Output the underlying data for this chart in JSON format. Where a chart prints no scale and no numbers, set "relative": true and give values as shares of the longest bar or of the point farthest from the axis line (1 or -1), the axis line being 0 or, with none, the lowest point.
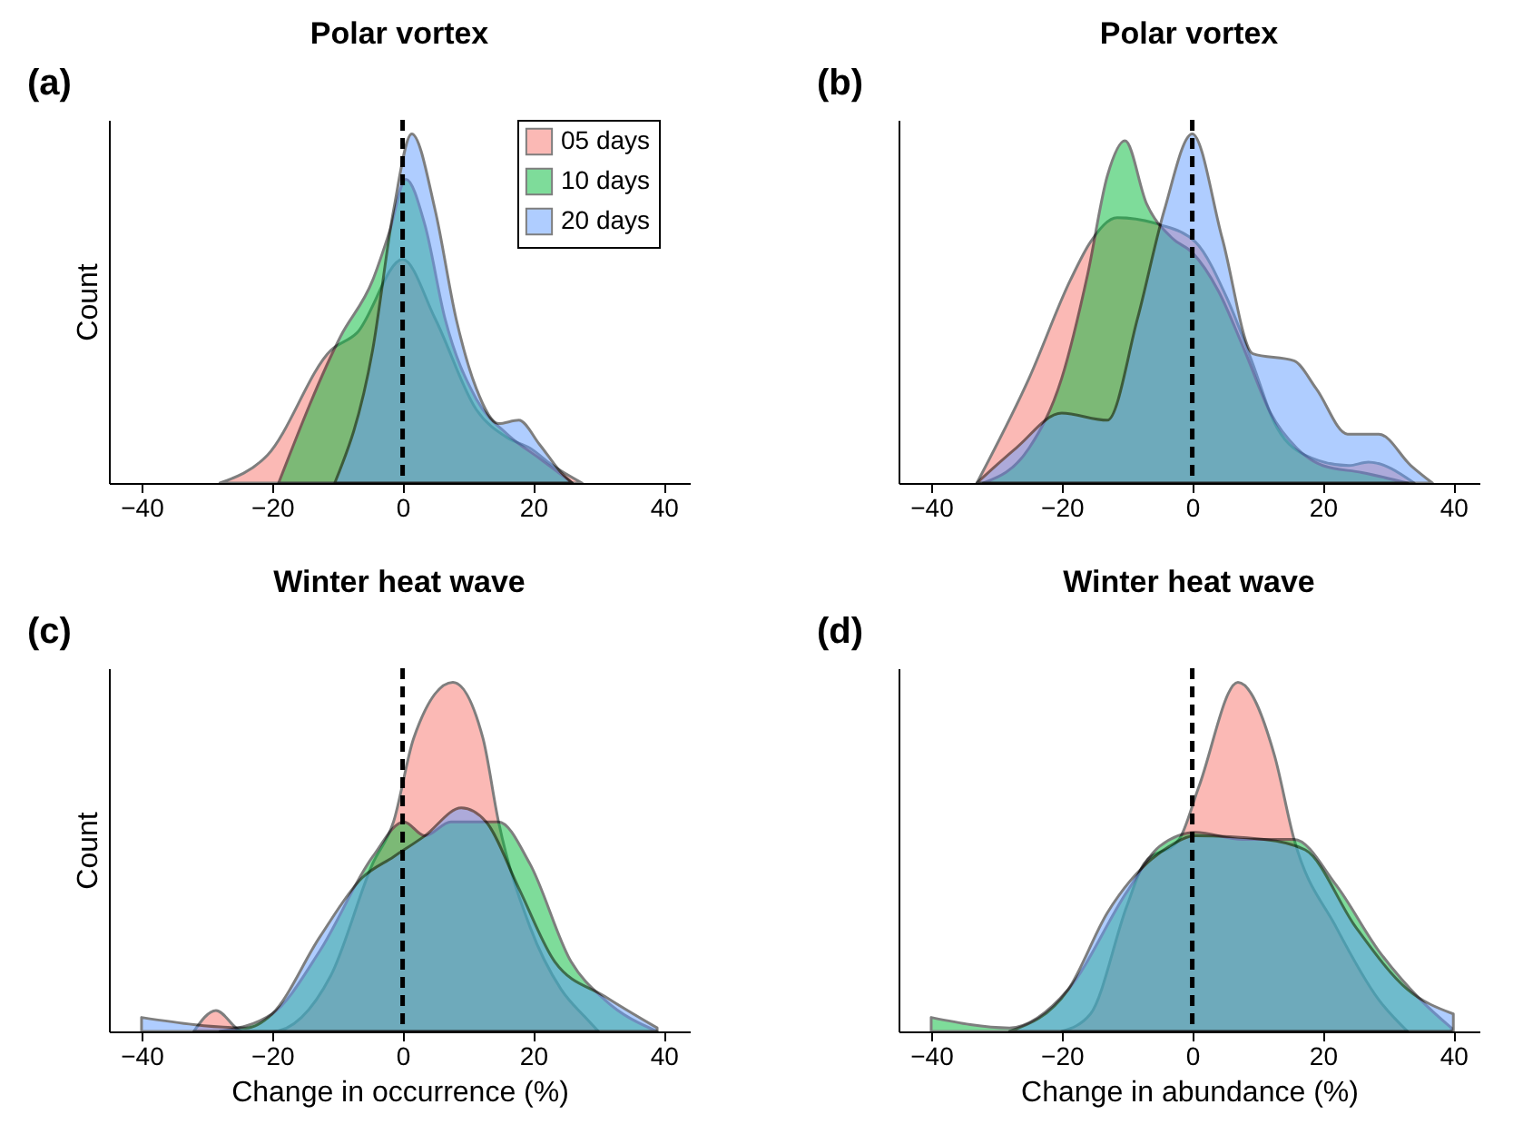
{
  "chart_data": [
    {
      "type": "area",
      "title": "Polar vortex",
      "annotations": [
        "(a)"
      ],
      "ylabel": "Count",
      "relative": true,
      "tick_labels": "x",
      "xlim": [
        -45,
        44
      ],
      "xticks": [
        -40,
        -20,
        0,
        20,
        40
      ],
      "legend": "top right",
      "grid": false,
      "ref_lines": [
        {
          "axis": "x",
          "value": 0,
          "color": "#000000",
          "line_style": "dashed"
        }
      ],
      "series": [
        {
          "name": "05 days",
          "color": "#f8766d",
          "x": [
            -28,
            -20.7,
            -11,
            -7,
            0,
            5,
            11.3,
            16,
            19.5,
            23,
            27.5
          ],
          "values": [
            0,
            0.08,
            0.38,
            0.43,
            0.64,
            0.47,
            0.21,
            0.13,
            0.1,
            0.05,
            0
          ]
        },
        {
          "name": "10 days",
          "color": "#00ba38",
          "x": [
            -19,
            -9.5,
            -4.6,
            -2,
            0.5,
            3.4,
            6.5,
            11.3,
            16,
            21,
            26
          ],
          "values": [
            0,
            0.42,
            0.58,
            0.72,
            0.87,
            0.74,
            0.47,
            0.24,
            0.14,
            0.07,
            0
          ]
        },
        {
          "name": "20 days",
          "color": "#619cff",
          "x": [
            -10.4,
            -4.6,
            -1.4,
            1.4,
            5,
            8.2,
            11.3,
            14.7,
            17.8,
            21,
            24.3,
            26
          ],
          "values": [
            0,
            0.38,
            0.78,
            1.0,
            0.78,
            0.47,
            0.27,
            0.17,
            0.18,
            0.11,
            0.03,
            0
          ]
        }
      ]
    },
    {
      "type": "area",
      "title": "Polar vortex",
      "annotations": [
        "(b)"
      ],
      "relative": true,
      "tick_labels": "x",
      "xlim": [
        -45,
        44
      ],
      "xticks": [
        -40,
        -20,
        0,
        20,
        40
      ],
      "grid": false,
      "ref_lines": [
        {
          "axis": "x",
          "value": 0,
          "color": "#000000",
          "line_style": "dashed"
        }
      ],
      "series": [
        {
          "color": "#f8766d",
          "x": [
            -33,
            -25,
            -18.7,
            -15.6,
            -11.5,
            -5,
            0.5,
            5.3,
            9.3,
            12.4,
            17.3,
            24,
            27,
            34
          ],
          "values": [
            0,
            0.3,
            0.58,
            0.69,
            0.76,
            0.74,
            0.69,
            0.53,
            0.34,
            0.18,
            0.08,
            0.05,
            0.06,
            0
          ]
        },
        {
          "color": "#00ba38",
          "x": [
            -32,
            -25,
            -20,
            -16,
            -13,
            -10.3,
            -7,
            -3,
            0,
            4,
            8,
            12,
            16,
            20,
            26,
            33
          ],
          "values": [
            0,
            0.1,
            0.3,
            0.6,
            0.88,
            0.98,
            0.8,
            0.7,
            0.66,
            0.55,
            0.38,
            0.2,
            0.1,
            0.05,
            0.03,
            0
          ]
        },
        {
          "color": "#619cff",
          "x": [
            -33,
            -27,
            -20,
            -13,
            -8.4,
            -4.3,
            0,
            4.6,
            9.3,
            15.6,
            19,
            23.8,
            28.6,
            33.5,
            36.8
          ],
          "values": [
            0,
            0.1,
            0.2,
            0.18,
            0.47,
            0.78,
            1.0,
            0.7,
            0.37,
            0.35,
            0.27,
            0.14,
            0.14,
            0.05,
            0
          ]
        }
      ]
    },
    {
      "type": "area",
      "title": "Winter heat wave",
      "annotations": [
        "(c)"
      ],
      "xlabel": "Change in occurrence (%)",
      "ylabel": "Count",
      "relative": true,
      "tick_labels": "x",
      "xlim": [
        -45,
        44
      ],
      "xticks": [
        -40,
        -20,
        0,
        20,
        40
      ],
      "grid": false,
      "ref_lines": [
        {
          "axis": "x",
          "value": 0,
          "color": "#000000",
          "line_style": "dashed"
        }
      ],
      "series": [
        {
          "color": "#f8766d",
          "x": [
            -32,
            -28.6,
            -24.5,
            -20,
            -11,
            -4.6,
            -1.4,
            1.7,
            7.7,
            12.3,
            14.7,
            19.5,
            24.3,
            28,
            30
          ],
          "values": [
            0,
            0.06,
            0,
            0,
            0.16,
            0.48,
            0.6,
            0.84,
            1.0,
            0.84,
            0.6,
            0.3,
            0.12,
            0.04,
            0
          ]
        },
        {
          "color": "#00ba38",
          "x": [
            -28,
            -20,
            -12.7,
            -4.6,
            0.2,
            3.4,
            7.4,
            14.7,
            19.5,
            25.8,
            31,
            39
          ],
          "values": [
            0,
            0.05,
            0.23,
            0.5,
            0.6,
            0.56,
            0.6,
            0.6,
            0.48,
            0.2,
            0.09,
            0
          ]
        },
        {
          "color": "#619cff",
          "x": [
            -40,
            -24,
            -20,
            -12.7,
            -6.2,
            -1.4,
            3.4,
            9,
            12.8,
            17.8,
            23.3,
            31,
            39
          ],
          "values": [
            0.04,
            0.01,
            0.05,
            0.27,
            0.44,
            0.5,
            0.56,
            0.64,
            0.6,
            0.41,
            0.2,
            0.1,
            0.01
          ]
        }
      ]
    },
    {
      "type": "area",
      "title": "Winter heat wave",
      "annotations": [
        "(d)"
      ],
      "xlabel": "Change in abundance (%)",
      "relative": true,
      "tick_labels": "x",
      "xlim": [
        -45,
        44
      ],
      "xticks": [
        -40,
        -20,
        0,
        20,
        40
      ],
      "grid": false,
      "ref_lines": [
        {
          "axis": "x",
          "value": 0,
          "color": "#000000",
          "line_style": "dashed"
        }
      ],
      "series": [
        {
          "color": "#f8766d",
          "x": [
            -20,
            -15.6,
            -10,
            -7.4,
            -2,
            1,
            7,
            12.6,
            15.6,
            22,
            28.6,
            33
          ],
          "values": [
            0,
            0.05,
            0.36,
            0.48,
            0.55,
            0.7,
            1.0,
            0.79,
            0.55,
            0.3,
            0.09,
            0
          ]
        },
        {
          "color": "#00ba38",
          "x": [
            -40,
            -28,
            -19,
            -10,
            -5,
            0.5,
            7.7,
            15.6,
            22,
            28.6,
            35,
            39.7
          ],
          "values": [
            0.04,
            0.01,
            0.12,
            0.4,
            0.53,
            0.57,
            0.55,
            0.55,
            0.42,
            0.23,
            0.09,
            0.01
          ]
        },
        {
          "color": "#619cff",
          "x": [
            -28,
            -19,
            -13,
            -3.5,
            0.5,
            11,
            17.3,
            25,
            33,
            40
          ],
          "values": [
            0,
            0.12,
            0.34,
            0.53,
            0.56,
            0.55,
            0.52,
            0.3,
            0.12,
            0.05
          ]
        }
      ]
    }
  ]
}
